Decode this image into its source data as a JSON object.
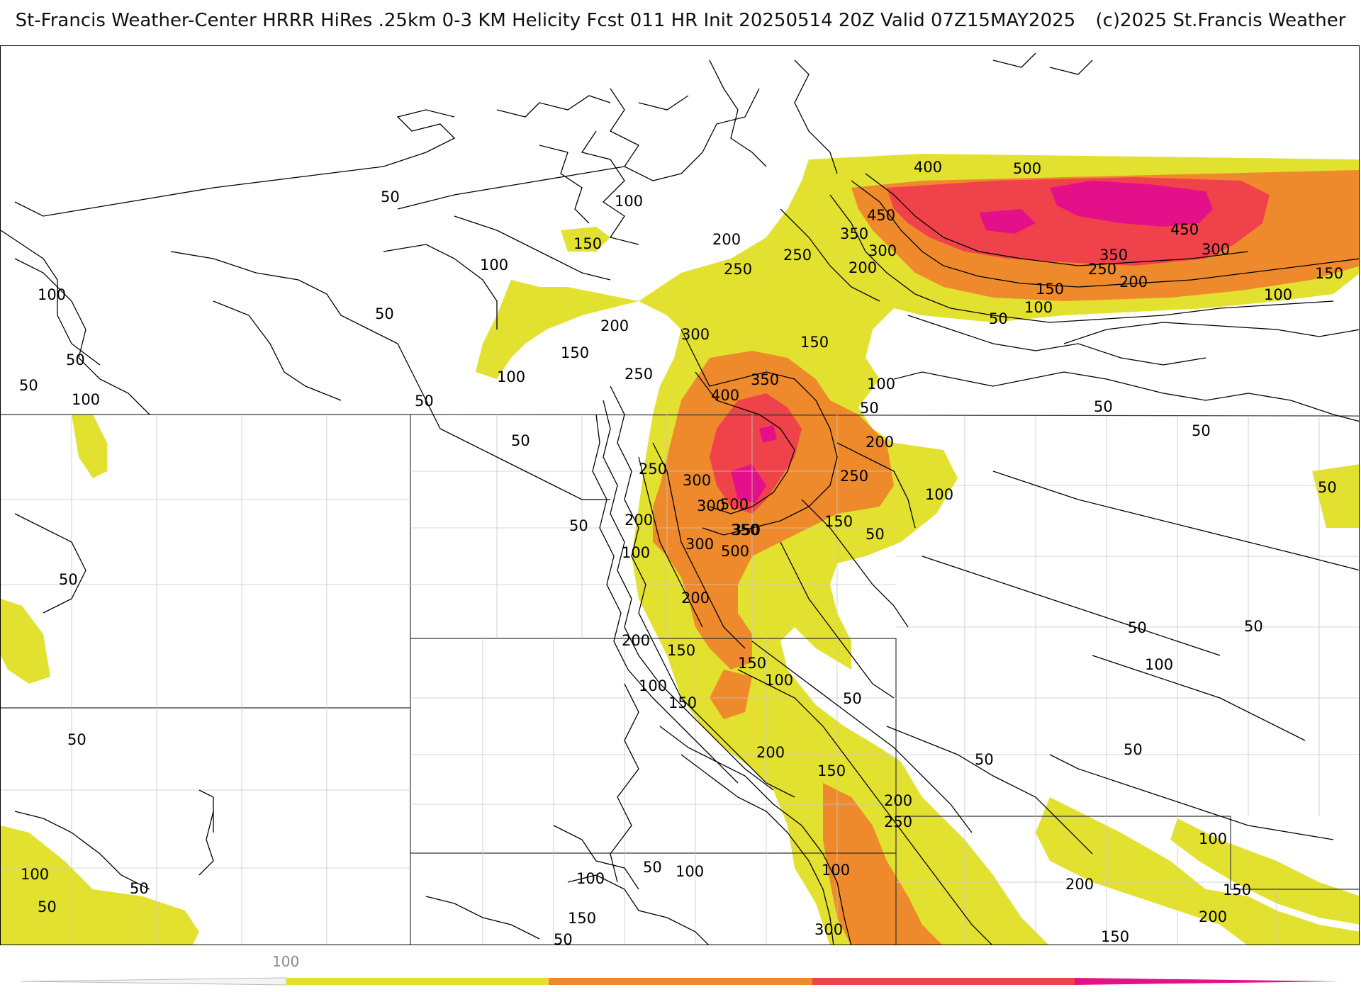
{
  "title": {
    "main": "St-Francis Weather-Center HRRR HiRes .25km 0-3 KM Helicity Fcst 011 HR Init 20250514 20Z  Valid 07Z15MAY2025",
    "copyright": "(c)2025 St.Francis Weather"
  },
  "colors": {
    "level_150": "#e3e130",
    "level_250": "#ee8a2c",
    "level_400": "#f0424a",
    "level_500": "#e3108a",
    "contour": "#000000",
    "border": "#aaaaaa"
  },
  "colorbar": {
    "tick_label": "100",
    "segments": [
      "#e3e130",
      "#ee8a2c",
      "#f0424a",
      "#e3108a"
    ]
  },
  "contour_labels": [
    "50",
    "100",
    "150",
    "200",
    "250",
    "300",
    "350",
    "400",
    "450",
    "500"
  ],
  "map_labels": {
    "l1": "50",
    "l2": "100",
    "l3": "150",
    "l4": "200",
    "l5": "250",
    "l6": "300",
    "l7": "350",
    "l8": "400",
    "l9": "500",
    "l10": "450",
    "l11": "350",
    "l12": "300",
    "l13": "250",
    "l14": "200",
    "l15": "150",
    "l16": "100",
    "l17": "50",
    "l18": "500",
    "l19": "400",
    "l20": "450",
    "l21": "300",
    "l22": "350",
    "l23": "250",
    "l24": "200",
    "l25": "150",
    "l26": "100",
    "l27": "100",
    "l28": "50",
    "l29": "100",
    "l30": "50",
    "l31": "50",
    "l32": "100",
    "l33": "50",
    "l34": "100",
    "l35": "150",
    "l36": "250",
    "l37": "200",
    "l38": "300",
    "l39": "350",
    "l40": "400",
    "l41": "150",
    "l42": "100",
    "l43": "50",
    "l44": "200",
    "l45": "250",
    "l46": "100",
    "l47": "150",
    "l48": "50",
    "l49": "50",
    "l50": "250",
    "l51": "300",
    "l52": "500",
    "l53": "350",
    "l54": "200",
    "l55": "300",
    "l56": "100",
    "l57": "200",
    "l58": "50",
    "l59": "150",
    "l60": "150",
    "l61": "100",
    "l62": "200",
    "l63": "50",
    "l64": "100",
    "l65": "150",
    "l66": "100",
    "l67": "150",
    "l68": "50",
    "l69": "50",
    "l70": "200",
    "l71": "250",
    "l72": "100",
    "l73": "50",
    "l74": "100",
    "l75": "100",
    "l76": "150",
    "l77": "200",
    "l78": "50",
    "l79": "100",
    "l80": "50",
    "l81": "50",
    "l82": "100",
    "l83": "150",
    "l84": "50",
    "l85": "200",
    "l86": "100",
    "l87": "50",
    "l88": "300",
    "l89": "200",
    "l90": "200",
    "l91": "150",
    "l92": "150",
    "l93": "200",
    "l94": "150",
    "l95": "50",
    "l96": "100",
    "l97": "100",
    "l98": "50",
    "l99": "50",
    "l100": "50"
  }
}
